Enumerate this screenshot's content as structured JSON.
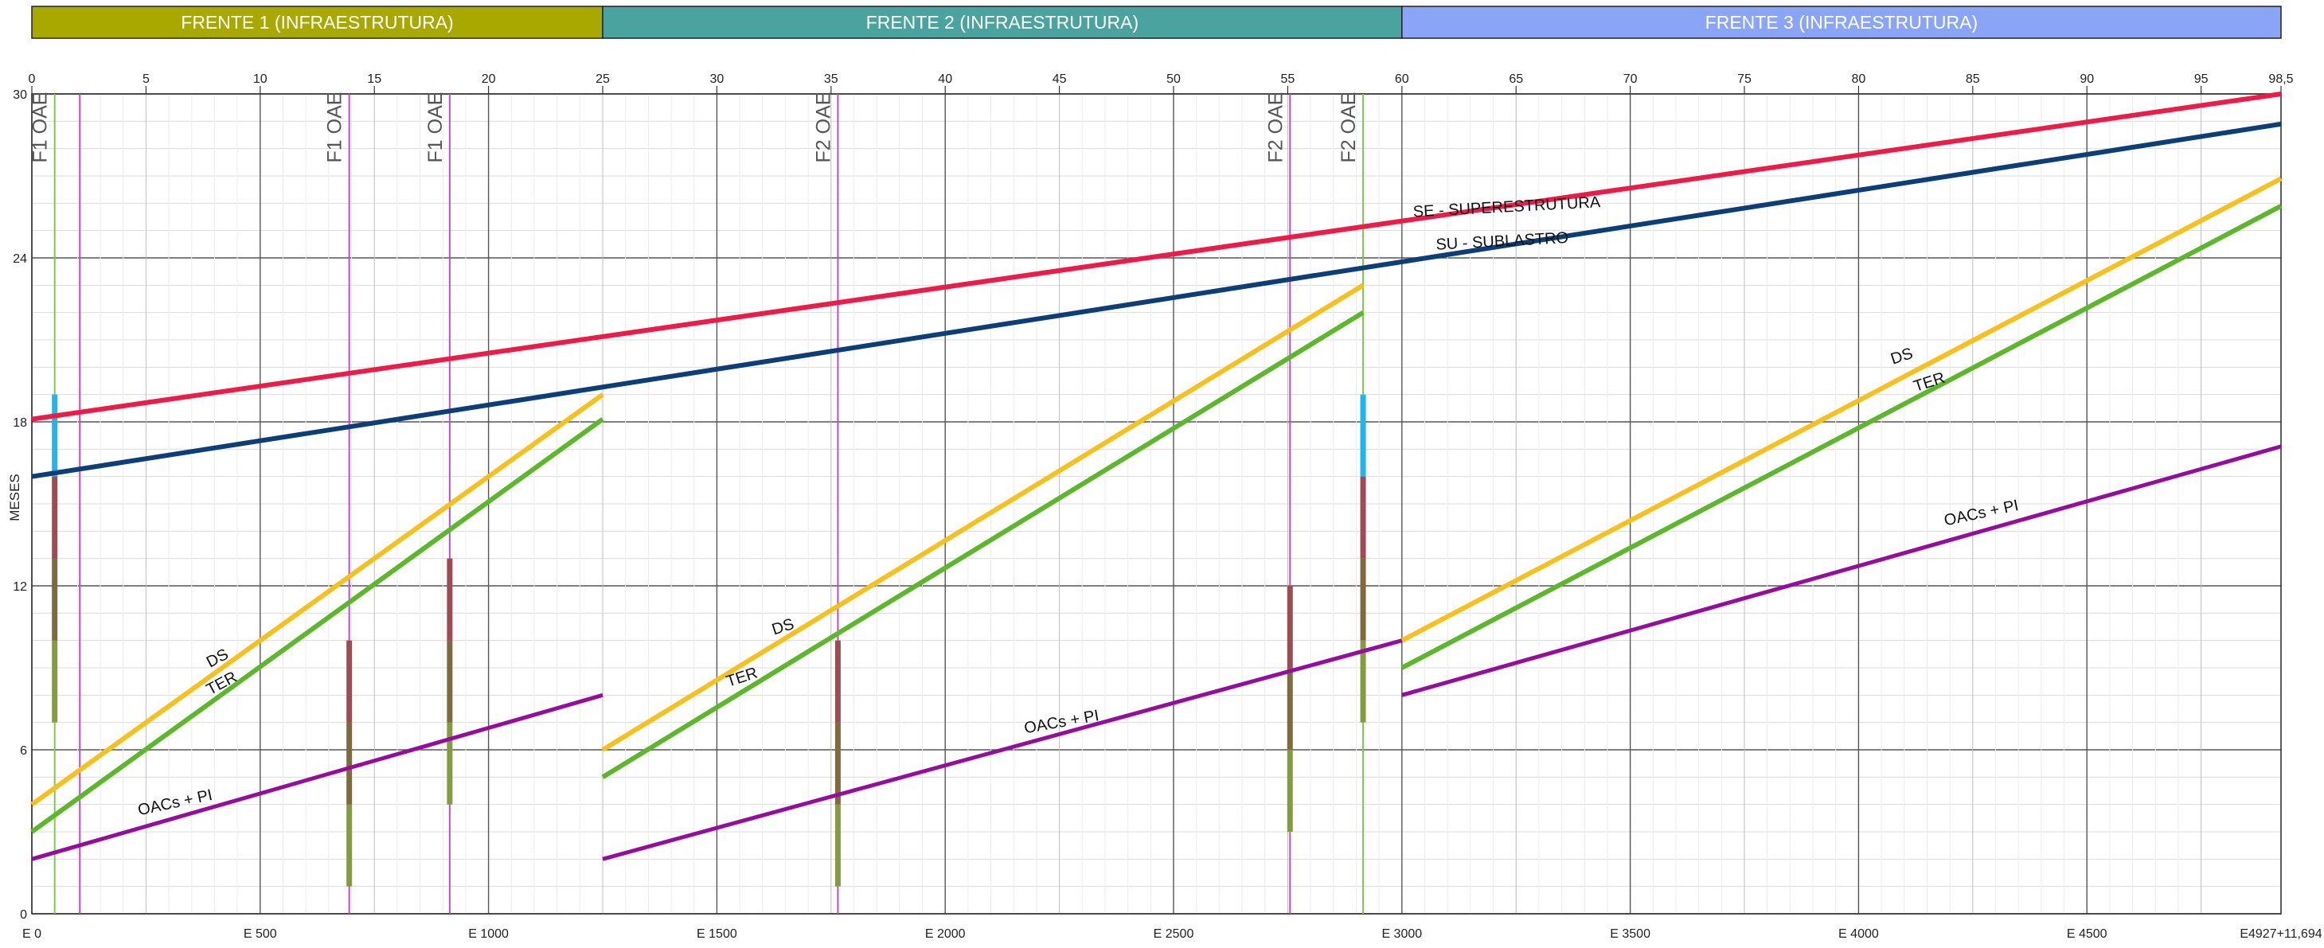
{
  "chart_data": {
    "type": "line",
    "title": "",
    "ylabel": "MESES",
    "xlabel": "",
    "ylim": [
      0,
      30
    ],
    "xlim_km": [
      0,
      98.5
    ],
    "grid": true,
    "fronts": [
      {
        "label": "FRENTE 1 (INFRAESTRUTURA)",
        "start_km": 0,
        "end_km": 25,
        "color": "#a8a800"
      },
      {
        "label": "FRENTE 2 (INFRAESTRUTURA)",
        "start_km": 25,
        "end_km": 60,
        "color": "#4aa39e"
      },
      {
        "label": "FRENTE 3 (INFRAESTRUTURA)",
        "start_km": 60,
        "end_km": 98.5,
        "color": "#8aa5f5"
      }
    ],
    "y_ticks": [
      "0",
      "6",
      "12",
      "18",
      "24",
      "30"
    ],
    "km_ticks": [
      {
        "km": 0,
        "label": "0"
      },
      {
        "km": 5,
        "label": "5"
      },
      {
        "km": 10,
        "label": "10"
      },
      {
        "km": 15,
        "label": "15"
      },
      {
        "km": 20,
        "label": "20"
      },
      {
        "km": 25,
        "label": "25"
      },
      {
        "km": 30,
        "label": "30"
      },
      {
        "km": 35,
        "label": "35"
      },
      {
        "km": 40,
        "label": "40"
      },
      {
        "km": 45,
        "label": "45"
      },
      {
        "km": 50,
        "label": "50"
      },
      {
        "km": 55,
        "label": "55"
      },
      {
        "km": 60,
        "label": "60"
      },
      {
        "km": 65,
        "label": "65"
      },
      {
        "km": 70,
        "label": "70"
      },
      {
        "km": 75,
        "label": "75"
      },
      {
        "km": 80,
        "label": "80"
      },
      {
        "km": 85,
        "label": "85"
      },
      {
        "km": 90,
        "label": "90"
      },
      {
        "km": 95,
        "label": "95"
      },
      {
        "km": 98.5,
        "label": "98,5"
      }
    ],
    "station_ticks": [
      {
        "km": 0,
        "label": "E 0"
      },
      {
        "km": 10,
        "label": "E 500"
      },
      {
        "km": 20,
        "label": "E 1000"
      },
      {
        "km": 30,
        "label": "E 1500"
      },
      {
        "km": 40,
        "label": "E 2000"
      },
      {
        "km": 50,
        "label": "E 2500"
      },
      {
        "km": 60,
        "label": "E 3000"
      },
      {
        "km": 70,
        "label": "E 3500"
      },
      {
        "km": 80,
        "label": "E 4000"
      },
      {
        "km": 90,
        "label": "E 4500"
      },
      {
        "km": 98.5,
        "label": "E4927+11,694"
      }
    ],
    "series": [
      {
        "name": "SE - SUPERESTRUTURA",
        "color": "#ee1a47",
        "width": 6,
        "segments": [
          [
            [
              0,
              18.1
            ],
            [
              98.5,
              30
            ]
          ]
        ],
        "label": {
          "text": "SE - SUPERESTRUTURA",
          "km": 60.5,
          "y": 25.5,
          "angle": -3
        }
      },
      {
        "name": "SU - SUBLASTRO",
        "color": "#0c3e78",
        "width": 6,
        "segments": [
          [
            [
              0,
              16
            ],
            [
              98.5,
              28.9
            ]
          ]
        ],
        "label": {
          "text": "SU - SUBLASTRO",
          "km": 61.5,
          "y": 24.3,
          "angle": -3
        }
      },
      {
        "name": "DS",
        "color": "#f8c01c",
        "width": 6,
        "segments": [
          [
            [
              0,
              4
            ],
            [
              25,
              19
            ]
          ],
          [
            [
              25,
              6
            ],
            [
              58.3,
              23
            ]
          ],
          [
            [
              60,
              10
            ],
            [
              98.5,
              26.9
            ]
          ]
        ],
        "labels": [
          {
            "text": "DS",
            "km": 7.8,
            "y": 9,
            "angle": -28
          },
          {
            "text": "DS",
            "km": 32.5,
            "y": 10.2,
            "angle": -18
          },
          {
            "text": "DS",
            "km": 81.5,
            "y": 20.1,
            "angle": -18
          }
        ]
      },
      {
        "name": "TER",
        "color": "#5cb82a",
        "width": 6,
        "segments": [
          [
            [
              0,
              3
            ],
            [
              25,
              18.1
            ]
          ],
          [
            [
              25,
              5
            ],
            [
              58.3,
              22
            ]
          ],
          [
            [
              60,
              9
            ],
            [
              98.5,
              25.9
            ]
          ]
        ],
        "labels": [
          {
            "text": "TER",
            "km": 7.8,
            "y": 8,
            "angle": -28
          },
          {
            "text": "TER",
            "km": 30.5,
            "y": 8.3,
            "angle": -18
          },
          {
            "text": "TER",
            "km": 82.5,
            "y": 19.1,
            "angle": -18
          }
        ]
      },
      {
        "name": "OACs + PI",
        "color": "#960d9e",
        "width": 5,
        "segments": [
          [
            [
              0,
              2
            ],
            [
              25,
              8
            ]
          ],
          [
            [
              25,
              2
            ],
            [
              60,
              10
            ]
          ],
          [
            [
              60,
              8
            ],
            [
              98.5,
              17.1
            ]
          ]
        ],
        "labels": [
          {
            "text": "OACs + PI",
            "km": 4.7,
            "y": 3.6,
            "angle": -12
          },
          {
            "text": "OACs + PI",
            "km": 43.5,
            "y": 6.6,
            "angle": -10
          },
          {
            "text": "OACs + PI",
            "km": 83.8,
            "y": 14.2,
            "angle": -12
          }
        ]
      }
    ],
    "oae_markers": [
      {
        "km": 1.0,
        "label": "F1 OAE",
        "color": "#7ec94a"
      },
      {
        "km": 2.1,
        "label": "",
        "color": "#c04ad0"
      },
      {
        "km": 13.9,
        "label": "F1 OAE",
        "color": "#c04ad0"
      },
      {
        "km": 18.3,
        "label": "F1 OAE",
        "color": "#c04ad0"
      },
      {
        "km": 35.3,
        "label": "F2 OAE",
        "color": "#c04ad0"
      },
      {
        "km": 55.1,
        "label": "F2 OAE",
        "color": "#c04ad0"
      },
      {
        "km": 58.3,
        "label": "F2 OAE",
        "color": "#7ec94a"
      }
    ],
    "oae_bars": [
      {
        "km": 1.0,
        "segments": [
          {
            "from": 7,
            "to": 10,
            "color": "#839d3e"
          },
          {
            "from": 10,
            "to": 13,
            "color": "#7e6a3a"
          },
          {
            "from": 13,
            "to": 16,
            "color": "#a04b52"
          },
          {
            "from": 16,
            "to": 19,
            "color": "#1fb6ec"
          }
        ]
      },
      {
        "km": 13.9,
        "segments": [
          {
            "from": 1,
            "to": 4,
            "color": "#839d3e"
          },
          {
            "from": 4,
            "to": 7,
            "color": "#7e6a3a"
          },
          {
            "from": 7,
            "to": 10,
            "color": "#a04b52"
          }
        ]
      },
      {
        "km": 18.3,
        "segments": [
          {
            "from": 4,
            "to": 7,
            "color": "#839d3e"
          },
          {
            "from": 7,
            "to": 10,
            "color": "#7e6a3a"
          },
          {
            "from": 10,
            "to": 13,
            "color": "#a04b52"
          }
        ]
      },
      {
        "km": 35.3,
        "segments": [
          {
            "from": 1,
            "to": 4,
            "color": "#839d3e"
          },
          {
            "from": 4,
            "to": 7,
            "color": "#7e6a3a"
          },
          {
            "from": 7,
            "to": 10,
            "color": "#a04b52"
          }
        ]
      },
      {
        "km": 55.1,
        "segments": [
          {
            "from": 3,
            "to": 6,
            "color": "#839d3e"
          },
          {
            "from": 6,
            "to": 9,
            "color": "#7e6a3a"
          },
          {
            "from": 9,
            "to": 12,
            "color": "#a04b52"
          }
        ]
      },
      {
        "km": 58.3,
        "segments": [
          {
            "from": 7,
            "to": 10,
            "color": "#839d3e"
          },
          {
            "from": 10,
            "to": 13,
            "color": "#7e6a3a"
          },
          {
            "from": 13,
            "to": 16,
            "color": "#a04b52"
          },
          {
            "from": 16,
            "to": 19,
            "color": "#1fb6ec"
          }
        ]
      }
    ]
  }
}
